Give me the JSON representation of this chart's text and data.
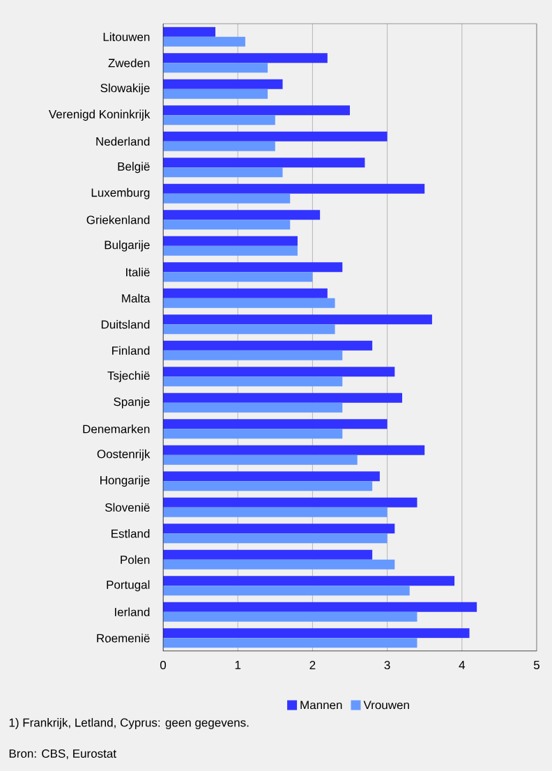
{
  "chart_data": {
    "type": "bar",
    "orientation": "horizontal",
    "categories": [
      "Litouwen",
      "Zweden",
      "Slowakije",
      "Verenigd Koninkrijk",
      "Nederland",
      "België",
      "Luxemburg",
      "Griekenland",
      "Bulgarije",
      "Italië",
      "Malta",
      "Duitsland",
      "Finland",
      "Tsjechië",
      "Spanje",
      "Denemarken",
      "Oostenrijk",
      "Hongarije",
      "Slovenië",
      "Estland",
      "Polen",
      "Portugal",
      "Ierland",
      "Roemenië"
    ],
    "series": [
      {
        "name": "Mannen",
        "color": "#3333ff",
        "values": [
          0.7,
          2.2,
          1.6,
          2.5,
          3.0,
          2.7,
          3.5,
          2.1,
          1.8,
          2.4,
          2.2,
          3.6,
          2.8,
          3.1,
          3.2,
          3.0,
          3.5,
          2.9,
          3.4,
          3.1,
          2.8,
          3.9,
          4.2,
          4.1
        ]
      },
      {
        "name": "Vrouwen",
        "color": "#6699ff",
        "values": [
          1.1,
          1.4,
          1.4,
          1.5,
          1.5,
          1.6,
          1.7,
          1.7,
          1.8,
          2.0,
          2.3,
          2.3,
          2.4,
          2.4,
          2.4,
          2.4,
          2.6,
          2.8,
          3.0,
          3.0,
          3.1,
          3.3,
          3.4,
          3.4
        ]
      }
    ],
    "xlim": [
      0,
      5
    ],
    "xticks": [
      0,
      1,
      2,
      3,
      4,
      5
    ],
    "grid": "x",
    "legend": "bottom",
    "annotations": [
      "1) Frankrijk, Letland, Cyprus: geen gegevens.",
      "Bron: CBS, Eurostat"
    ]
  }
}
